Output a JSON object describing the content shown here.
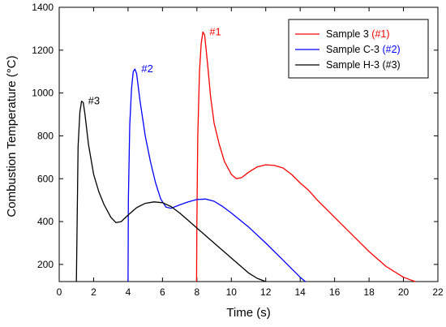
{
  "chart_data": {
    "type": "line",
    "xlabel": "Time (s)",
    "ylabel": "Combustion Temperature (°C)",
    "xlim": [
      0,
      22
    ],
    "ylim": [
      120,
      1400
    ],
    "xticks": [
      0,
      2,
      4,
      6,
      8,
      10,
      12,
      14,
      16,
      18,
      20,
      22
    ],
    "yticks": [
      200,
      400,
      600,
      800,
      1000,
      1200,
      1400
    ],
    "grid": false,
    "legend_position": "top-right",
    "series": [
      {
        "name": "Sample 3",
        "name_suffix": "(#1)",
        "color": "#ff0000",
        "peak_label": "#1",
        "x": [
          7.98,
          8.0,
          8.05,
          8.15,
          8.25,
          8.35,
          8.45,
          8.6,
          8.8,
          9.0,
          9.3,
          9.6,
          10.0,
          10.3,
          10.6,
          11.0,
          11.5,
          12.0,
          12.5,
          13.0,
          13.5,
          14.0,
          14.5,
          15.0,
          15.5,
          16.0,
          17.0,
          18.0,
          19.0,
          20.0,
          20.5,
          20.7
        ],
        "y": [
          120,
          400,
          800,
          1100,
          1230,
          1285,
          1270,
          1150,
          980,
          860,
          760,
          680,
          620,
          600,
          605,
          630,
          655,
          665,
          662,
          650,
          620,
          580,
          545,
          500,
          460,
          420,
          340,
          260,
          190,
          140,
          125,
          120
        ]
      },
      {
        "name": "Sample C-3",
        "name_suffix": "(#2)",
        "color": "#0000ff",
        "peak_label": "#2",
        "x": [
          4.0,
          4.02,
          4.1,
          4.2,
          4.3,
          4.4,
          4.5,
          4.7,
          5.0,
          5.3,
          5.6,
          5.9,
          6.2,
          6.5,
          7.0,
          7.5,
          8.0,
          8.5,
          9.0,
          9.5,
          10.0,
          11.0,
          12.0,
          13.0,
          13.5,
          14.0,
          14.3
        ],
        "y": [
          120,
          500,
          850,
          1020,
          1100,
          1112,
          1090,
          960,
          800,
          680,
          580,
          505,
          468,
          462,
          478,
          492,
          503,
          505,
          495,
          470,
          440,
          375,
          300,
          220,
          180,
          140,
          120
        ]
      },
      {
        "name": "Sample H-3",
        "name_suffix": "(#3)",
        "color": "#000000",
        "peak_label": "#3",
        "x": [
          1.0,
          1.05,
          1.1,
          1.2,
          1.3,
          1.4,
          1.5,
          1.7,
          2.0,
          2.3,
          2.6,
          3.0,
          3.3,
          3.6,
          4.0,
          4.5,
          5.0,
          5.5,
          6.0,
          6.5,
          7.0,
          7.5,
          8.0,
          9.0,
          10.0,
          11.0,
          11.5,
          12.0
        ],
        "y": [
          120,
          450,
          750,
          910,
          962,
          955,
          900,
          760,
          620,
          540,
          480,
          420,
          395,
          400,
          430,
          465,
          485,
          492,
          488,
          470,
          440,
          405,
          370,
          300,
          230,
          160,
          135,
          120
        ]
      }
    ]
  }
}
